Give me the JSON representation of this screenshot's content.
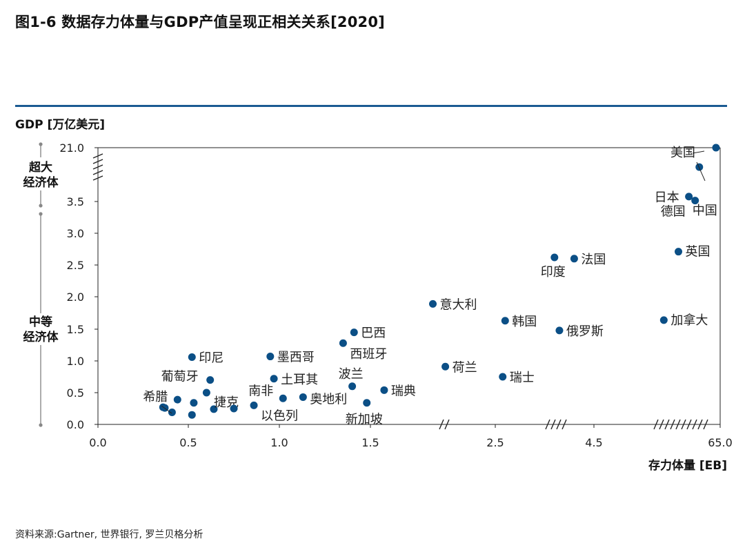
{
  "title": "图1-6 数据存力体量与GDP产值呈现正相关关系[2020]",
  "source": "资料来源:Gartner, 世界银行, 罗兰贝格分析",
  "bands": [
    {
      "label": "超大\n经济体"
    },
    {
      "label": "中等\n经济体"
    }
  ],
  "colors": {
    "point": "#0b4f86",
    "rule": "#1a5a92",
    "axis": "#222222"
  },
  "chart_data": {
    "type": "scatter",
    "xlabel": "存力体量 [EB]",
    "ylabel": "GDP [万亿美元]",
    "x_scale": "broken",
    "y_scale": "broken",
    "x_ticks": [
      "0.0",
      "0.5",
      "1.0",
      "1.5",
      "2.5",
      "4.5",
      "65.0"
    ],
    "y_ticks": [
      "0.0",
      "0.5",
      "1.0",
      "1.5",
      "2.0",
      "2.5",
      "3.0",
      "3.5",
      "21.0"
    ],
    "x_breaks": [
      "after 1.5",
      "before 4.5",
      "before 65.0"
    ],
    "y_breaks": [
      "between 3.5 and 21.0"
    ],
    "grid": false,
    "legend": "none",
    "points": [
      {
        "label": "美国",
        "x": 63.0,
        "y": 21.0
      },
      {
        "label": "中国",
        "x": 55.0,
        "y": 14.7
      },
      {
        "label": "日本",
        "x": 50.0,
        "y": 5.1
      },
      {
        "label": "德国",
        "x": 53.0,
        "y": 3.8
      },
      {
        "label": "英国",
        "x": 45.0,
        "y": 2.71
      },
      {
        "label": "加拿大",
        "x": 38.0,
        "y": 1.64
      },
      {
        "label": "法国",
        "x": 4.1,
        "y": 2.6
      },
      {
        "label": "印度",
        "x": 3.7,
        "y": 2.62
      },
      {
        "label": "俄罗斯",
        "x": 3.8,
        "y": 1.48
      },
      {
        "label": "韩国",
        "x": 2.7,
        "y": 1.63
      },
      {
        "label": "瑞士",
        "x": 2.65,
        "y": 0.75
      },
      {
        "label": "意大利",
        "x": 2.0,
        "y": 1.89
      },
      {
        "label": "荷兰",
        "x": 2.1,
        "y": 0.91
      },
      {
        "label": "瑞典",
        "x": 1.61,
        "y": 0.54
      },
      {
        "label": "巴西",
        "x": 1.41,
        "y": 1.45
      },
      {
        "label": "西班牙",
        "x": 1.35,
        "y": 1.28
      },
      {
        "label": "波兰",
        "x": 1.4,
        "y": 0.6
      },
      {
        "label": "新加坡",
        "x": 1.48,
        "y": 0.34
      },
      {
        "label": "墨西哥",
        "x": 0.95,
        "y": 1.07
      },
      {
        "label": "土耳其",
        "x": 0.97,
        "y": 0.72
      },
      {
        "label": "奥地利",
        "x": 1.13,
        "y": 0.43
      },
      {
        "label": "南非",
        "x": 1.02,
        "y": 0.41
      },
      {
        "label": "以色列",
        "x": 0.86,
        "y": 0.3
      },
      {
        "label": "印尼",
        "x": 0.52,
        "y": 1.06
      },
      {
        "label": "葡萄牙",
        "x": 0.62,
        "y": 0.7
      },
      {
        "label": "捷克",
        "x": 0.64,
        "y": 0.24
      },
      {
        "label": "希腊",
        "x": 0.36,
        "y": 0.27
      },
      {
        "label": "",
        "x": 0.37,
        "y": 0.26
      },
      {
        "label": "",
        "x": 0.41,
        "y": 0.19
      },
      {
        "label": "",
        "x": 0.44,
        "y": 0.39
      },
      {
        "label": "",
        "x": 0.52,
        "y": 0.15
      },
      {
        "label": "",
        "x": 0.53,
        "y": 0.34
      },
      {
        "label": "",
        "x": 0.6,
        "y": 0.5
      },
      {
        "label": "",
        "x": 0.75,
        "y": 0.25
      }
    ]
  }
}
